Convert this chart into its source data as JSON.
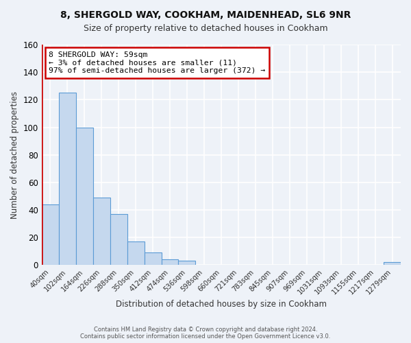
{
  "title_line1": "8, SHERGOLD WAY, COOKHAM, MAIDENHEAD, SL6 9NR",
  "title_line2": "Size of property relative to detached houses in Cookham",
  "xlabel": "Distribution of detached houses by size in Cookham",
  "ylabel": "Number of detached properties",
  "bar_labels": [
    "40sqm",
    "102sqm",
    "164sqm",
    "226sqm",
    "288sqm",
    "350sqm",
    "412sqm",
    "474sqm",
    "536sqm",
    "598sqm",
    "660sqm",
    "721sqm",
    "783sqm",
    "845sqm",
    "907sqm",
    "969sqm",
    "1031sqm",
    "1093sqm",
    "1155sqm",
    "1217sqm",
    "1279sqm"
  ],
  "bar_values": [
    44,
    125,
    100,
    49,
    37,
    17,
    9,
    4,
    3,
    0,
    0,
    0,
    0,
    0,
    0,
    0,
    0,
    0,
    0,
    0,
    2
  ],
  "bar_color": "#c5d8ee",
  "bar_edge_color": "#5b9bd5",
  "annotation_title": "8 SHERGOLD WAY: 59sqm",
  "annotation_line2": "← 3% of detached houses are smaller (11)",
  "annotation_line3": "97% of semi-detached houses are larger (372) →",
  "annotation_box_color": "#ffffff",
  "annotation_box_edge": "#cc0000",
  "red_line_color": "#cc0000",
  "ylim": [
    0,
    160
  ],
  "yticks": [
    0,
    20,
    40,
    60,
    80,
    100,
    120,
    140,
    160
  ],
  "footer_line1": "Contains HM Land Registry data © Crown copyright and database right 2024.",
  "footer_line2": "Contains public sector information licensed under the Open Government Licence v3.0.",
  "bg_color": "#eef2f8",
  "grid_color": "#d0d8e8",
  "title_fontsize": 10,
  "subtitle_fontsize": 9
}
